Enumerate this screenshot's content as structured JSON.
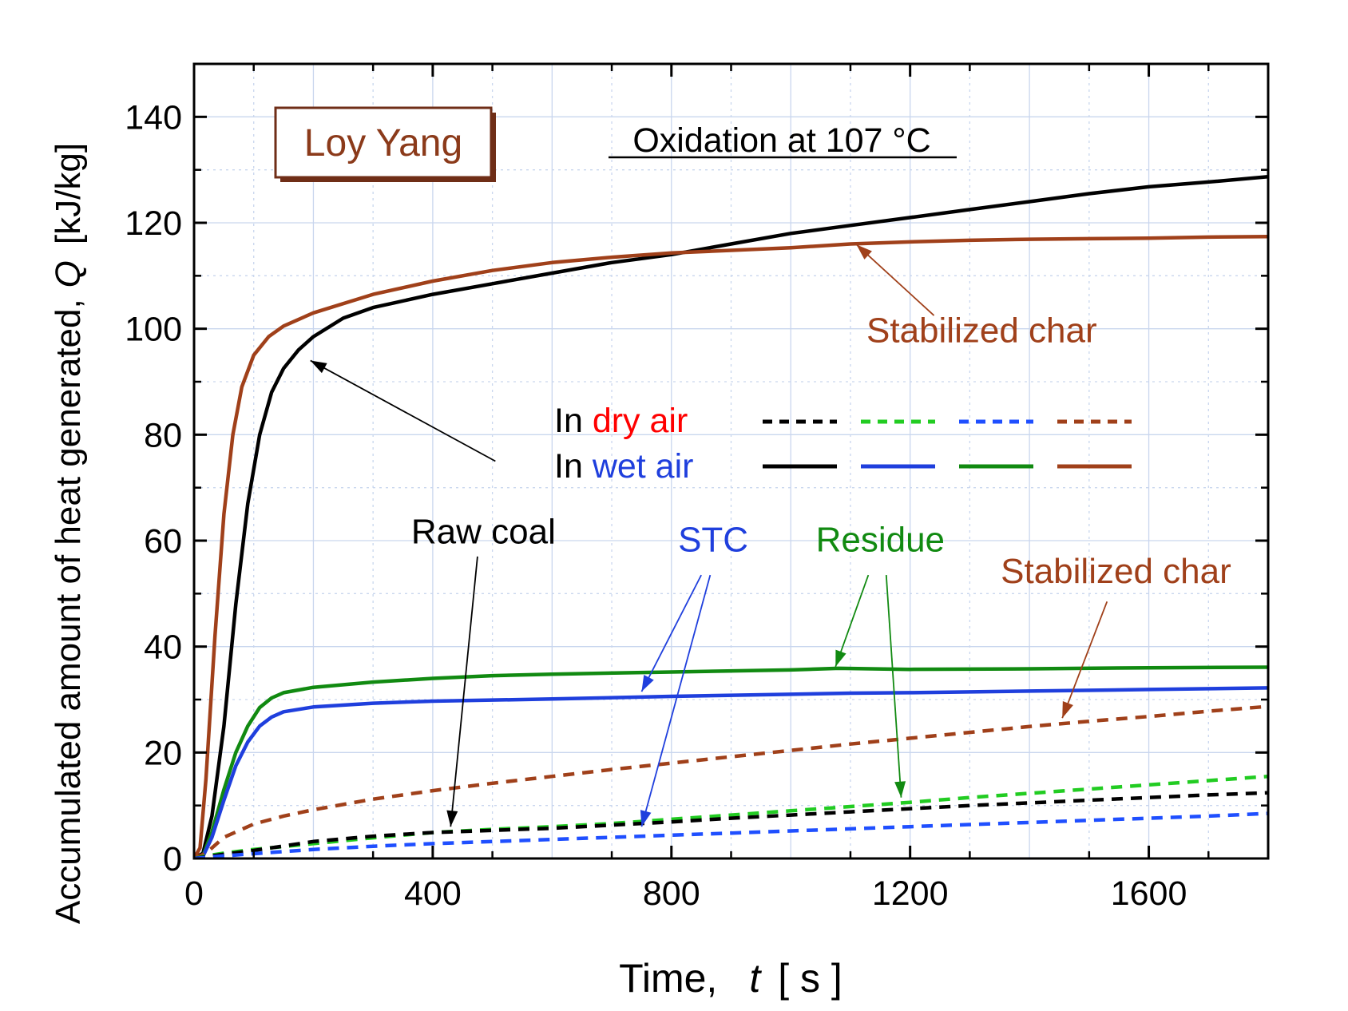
{
  "chart_data": {
    "type": "line",
    "title": "Oxidation at 107 °C",
    "sample_label": "Loy Yang",
    "xlabel": {
      "prefix": "Time,",
      "symbol": "t",
      "unit": "[ s ]"
    },
    "ylabel": {
      "prefix": "Accumulated amount of heat generated,",
      "symbol": "Q",
      "unit": "[kJ/kg]"
    },
    "xlim": [
      0,
      1800
    ],
    "ylim": [
      0,
      150
    ],
    "x_ticks": [
      0,
      400,
      800,
      1200,
      1600
    ],
    "x_tick_labels": [
      "0",
      "400",
      "800",
      "1200",
      "1600"
    ],
    "y_ticks": [
      0,
      20,
      40,
      60,
      80,
      100,
      120,
      140
    ],
    "y_tick_labels": [
      "0",
      "20",
      "40",
      "60",
      "80",
      "100",
      "120",
      "140"
    ],
    "grid": true,
    "legend": {
      "position": "center-right",
      "rows": [
        {
          "prefix": "In ",
          "colored": "dry air",
          "colored_color": "#ff0000",
          "style": "dashed",
          "swatch_colors": [
            "#000000",
            "#22cc22",
            "#1f4fff",
            "#a0401a"
          ]
        },
        {
          "prefix": "In ",
          "colored": "wet air",
          "colored_color": "#1f3fdd",
          "style": "solid",
          "swatch_colors": [
            "#000000",
            "#1f3fdd",
            "#118a11",
            "#a0401a"
          ]
        }
      ]
    },
    "series": [
      {
        "key": "raw_wet",
        "color": "#000000",
        "style": "solid",
        "points": [
          [
            0,
            0
          ],
          [
            15,
            1
          ],
          [
            30,
            8
          ],
          [
            50,
            25
          ],
          [
            70,
            48
          ],
          [
            90,
            67
          ],
          [
            110,
            80
          ],
          [
            130,
            88
          ],
          [
            150,
            92.5
          ],
          [
            175,
            96
          ],
          [
            200,
            98.5
          ],
          [
            250,
            102
          ],
          [
            300,
            104
          ],
          [
            400,
            106.5
          ],
          [
            500,
            108.5
          ],
          [
            600,
            110.5
          ],
          [
            700,
            112.5
          ],
          [
            800,
            114
          ],
          [
            900,
            116
          ],
          [
            1000,
            118
          ],
          [
            1100,
            119.5
          ],
          [
            1200,
            121
          ],
          [
            1300,
            122.5
          ],
          [
            1400,
            124
          ],
          [
            1500,
            125.5
          ],
          [
            1600,
            126.8
          ],
          [
            1700,
            127.7
          ],
          [
            1800,
            128.7
          ]
        ]
      },
      {
        "key": "char_wet",
        "color": "#a0401a",
        "style": "solid",
        "points": [
          [
            0,
            0
          ],
          [
            10,
            2
          ],
          [
            20,
            15
          ],
          [
            35,
            42
          ],
          [
            50,
            65
          ],
          [
            65,
            80
          ],
          [
            80,
            89
          ],
          [
            100,
            95
          ],
          [
            125,
            98.5
          ],
          [
            150,
            100.5
          ],
          [
            200,
            103
          ],
          [
            300,
            106.5
          ],
          [
            400,
            109
          ],
          [
            500,
            111
          ],
          [
            600,
            112.5
          ],
          [
            700,
            113.5
          ],
          [
            800,
            114.3
          ],
          [
            900,
            114.8
          ],
          [
            1000,
            115.3
          ],
          [
            1100,
            116
          ],
          [
            1200,
            116.4
          ],
          [
            1300,
            116.7
          ],
          [
            1400,
            116.9
          ],
          [
            1500,
            117
          ],
          [
            1600,
            117.1
          ],
          [
            1700,
            117.3
          ],
          [
            1800,
            117.4
          ]
        ]
      },
      {
        "key": "residue_wet",
        "color": "#118a11",
        "style": "solid",
        "points": [
          [
            0,
            0
          ],
          [
            15,
            0.5
          ],
          [
            30,
            5
          ],
          [
            50,
            13
          ],
          [
            70,
            20
          ],
          [
            90,
            25
          ],
          [
            110,
            28.5
          ],
          [
            130,
            30.3
          ],
          [
            150,
            31.3
          ],
          [
            200,
            32.3
          ],
          [
            300,
            33.3
          ],
          [
            400,
            34
          ],
          [
            500,
            34.5
          ],
          [
            600,
            34.8
          ],
          [
            800,
            35.2
          ],
          [
            1000,
            35.6
          ],
          [
            1080,
            35.9
          ],
          [
            1200,
            35.7
          ],
          [
            1400,
            35.8
          ],
          [
            1600,
            36
          ],
          [
            1800,
            36.1
          ]
        ]
      },
      {
        "key": "stc_wet",
        "color": "#1f3fdd",
        "style": "solid",
        "points": [
          [
            0,
            0
          ],
          [
            15,
            0.4
          ],
          [
            30,
            4
          ],
          [
            50,
            11
          ],
          [
            70,
            17.5
          ],
          [
            90,
            22
          ],
          [
            110,
            25
          ],
          [
            130,
            26.7
          ],
          [
            150,
            27.7
          ],
          [
            200,
            28.6
          ],
          [
            300,
            29.3
          ],
          [
            400,
            29.7
          ],
          [
            600,
            30.1
          ],
          [
            800,
            30.6
          ],
          [
            1000,
            31
          ],
          [
            1100,
            31.2
          ],
          [
            1200,
            31.3
          ],
          [
            1400,
            31.6
          ],
          [
            1600,
            31.9
          ],
          [
            1800,
            32.2
          ]
        ]
      },
      {
        "key": "char_dry",
        "color": "#a0401a",
        "style": "dashed",
        "points": [
          [
            0,
            0
          ],
          [
            20,
            1
          ],
          [
            50,
            4
          ],
          [
            100,
            6.5
          ],
          [
            150,
            8
          ],
          [
            200,
            9.2
          ],
          [
            300,
            11.2
          ],
          [
            400,
            12.8
          ],
          [
            500,
            14.2
          ],
          [
            600,
            15.5
          ],
          [
            700,
            16.8
          ],
          [
            800,
            18
          ],
          [
            900,
            19.2
          ],
          [
            1000,
            20.4
          ],
          [
            1100,
            21.6
          ],
          [
            1200,
            22.7
          ],
          [
            1300,
            23.8
          ],
          [
            1400,
            24.9
          ],
          [
            1500,
            25.9
          ],
          [
            1600,
            26.8
          ],
          [
            1700,
            27.8
          ],
          [
            1800,
            28.7
          ]
        ]
      },
      {
        "key": "residue_dry",
        "color": "#22cc22",
        "style": "dashed",
        "points": [
          [
            0,
            0
          ],
          [
            20,
            0.5
          ],
          [
            50,
            1
          ],
          [
            100,
            1.7
          ],
          [
            200,
            2.8
          ],
          [
            300,
            3.9
          ],
          [
            400,
            4.9
          ],
          [
            500,
            5.5
          ],
          [
            600,
            6
          ],
          [
            700,
            6.6
          ],
          [
            800,
            7.4
          ],
          [
            900,
            8.2
          ],
          [
            1000,
            9
          ],
          [
            1100,
            9.8
          ],
          [
            1200,
            10.6
          ],
          [
            1300,
            11.5
          ],
          [
            1400,
            12.3
          ],
          [
            1500,
            13.1
          ],
          [
            1600,
            13.9
          ],
          [
            1700,
            14.7
          ],
          [
            1800,
            15.5
          ]
        ]
      },
      {
        "key": "raw_dry",
        "color": "#000000",
        "style": "dashed",
        "points": [
          [
            0,
            0
          ],
          [
            50,
            0.8
          ],
          [
            100,
            1.5
          ],
          [
            200,
            3.2
          ],
          [
            300,
            4.2
          ],
          [
            400,
            4.9
          ],
          [
            500,
            5.3
          ],
          [
            600,
            5.7
          ],
          [
            700,
            6.3
          ],
          [
            800,
            6.9
          ],
          [
            900,
            7.6
          ],
          [
            1000,
            8.2
          ],
          [
            1100,
            8.8
          ],
          [
            1200,
            9.4
          ],
          [
            1300,
            10
          ],
          [
            1400,
            10.5
          ],
          [
            1500,
            11
          ],
          [
            1600,
            11.5
          ],
          [
            1700,
            12
          ],
          [
            1800,
            12.4
          ]
        ]
      },
      {
        "key": "stc_dry",
        "color": "#1f4fff",
        "style": "dashed",
        "points": [
          [
            0,
            0
          ],
          [
            50,
            0.5
          ],
          [
            100,
            0.9
          ],
          [
            200,
            1.7
          ],
          [
            300,
            2.3
          ],
          [
            400,
            2.8
          ],
          [
            500,
            3.2
          ],
          [
            600,
            3.6
          ],
          [
            700,
            4
          ],
          [
            800,
            4.4
          ],
          [
            900,
            4.8
          ],
          [
            1000,
            5.2
          ],
          [
            1100,
            5.6
          ],
          [
            1200,
            6
          ],
          [
            1300,
            6.4
          ],
          [
            1400,
            6.8
          ],
          [
            1500,
            7.2
          ],
          [
            1600,
            7.6
          ],
          [
            1700,
            8
          ],
          [
            1800,
            8.5
          ]
        ]
      }
    ],
    "annotations": [
      {
        "key": "raw_label",
        "text": "Raw coal",
        "color": "#000000",
        "x": 485,
        "y": 59.5,
        "arrows": [
          {
            "from": [
              505,
              75
            ],
            "to": [
              195,
              94
            ]
          },
          {
            "from": [
              475,
              57
            ],
            "to": [
              430,
              6
            ]
          }
        ]
      },
      {
        "key": "stc_label",
        "text": "STC",
        "color": "#1f3fdd",
        "x": 870,
        "y": 58,
        "arrows": [
          {
            "from": [
              850,
              53.5
            ],
            "to": [
              750,
              31.5
            ]
          },
          {
            "from": [
              865,
              53.5
            ],
            "to": [
              750,
              6
            ]
          }
        ]
      },
      {
        "key": "residue_label",
        "text": "Residue",
        "color": "#118a11",
        "x": 1150,
        "y": 58,
        "arrows": [
          {
            "from": [
              1130,
              53.5
            ],
            "to": [
              1075,
              36.2
            ]
          },
          {
            "from": [
              1160,
              53.5
            ],
            "to": [
              1185,
              11.5
            ]
          }
        ]
      },
      {
        "key": "char_dry_label",
        "text": "Stabilized char",
        "color": "#a0401a",
        "x": 1545,
        "y": 52,
        "arrows": [
          {
            "from": [
              1530,
              48.5
            ],
            "to": [
              1455,
              26.5
            ]
          }
        ]
      },
      {
        "key": "char_wet_label",
        "text": "Stabilized char",
        "color": "#a0401a",
        "x": 1320,
        "y": 97.5,
        "arrows": [
          {
            "from": [
              1240,
              102.5
            ],
            "to": [
              1110,
              115.9
            ]
          }
        ]
      }
    ]
  }
}
